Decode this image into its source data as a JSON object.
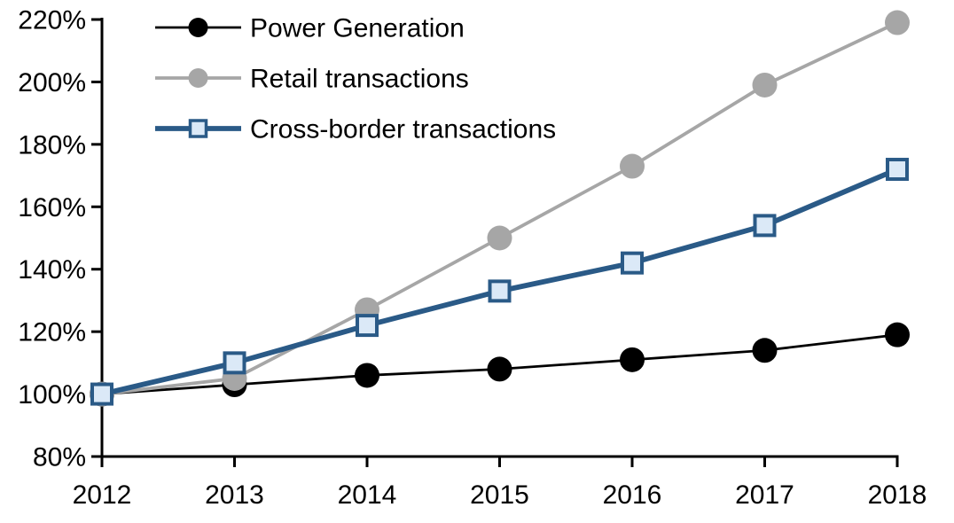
{
  "chart_data": {
    "type": "line",
    "title": "",
    "xlabel": "",
    "ylabel": "",
    "x": [
      2012,
      2013,
      2014,
      2015,
      2016,
      2017,
      2018
    ],
    "x_labels": [
      "2012",
      "2013",
      "2014",
      "2015",
      "2016",
      "2017",
      "2018"
    ],
    "ylim": [
      80,
      220
    ],
    "ytick_step": 20,
    "ytick_labels": [
      "80%",
      "100%",
      "120%",
      "140%",
      "160%",
      "180%",
      "200%",
      "220%"
    ],
    "grid": false,
    "legend_position": "top-left",
    "series": [
      {
        "name": "Power Generation",
        "values": [
          100,
          103,
          106,
          108,
          111,
          114,
          119
        ],
        "color": "#000000",
        "marker": "circle",
        "marker_fill": "#000000",
        "line_width": 2.8,
        "marker_size": 14
      },
      {
        "name": "Retail transactions",
        "values": [
          100,
          105,
          127,
          150,
          173,
          199,
          219
        ],
        "color": "#a6a6a6",
        "marker": "circle",
        "marker_fill": "#a6a6a6",
        "line_width": 3.8,
        "marker_size": 14
      },
      {
        "name": "Cross-border transactions",
        "values": [
          100,
          110,
          122,
          133,
          142,
          154,
          172
        ],
        "color": "#2a5a87",
        "marker": "square",
        "marker_fill": "#dbe9f7",
        "line_width": 5.8,
        "marker_size": 11
      }
    ]
  },
  "colors": {
    "axis": "#000000",
    "background": "#ffffff",
    "text": "#000000"
  }
}
